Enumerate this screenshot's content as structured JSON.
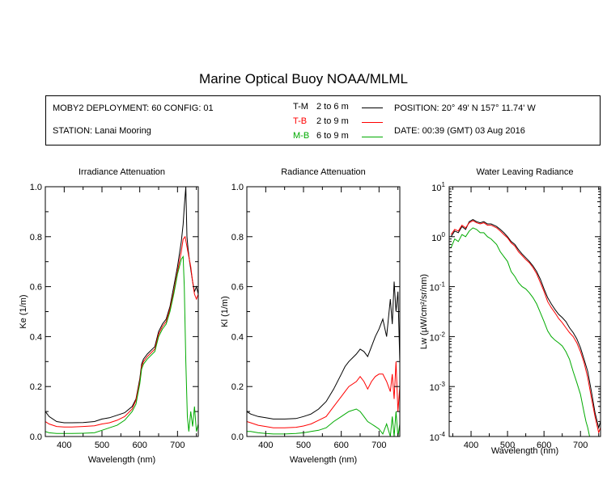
{
  "title": "Marine Optical Buoy NOAA/MLML",
  "info": {
    "deployment": "MOBY2 DEPLOYMENT: 60 CONFIG: 01",
    "station": "STATION: Lanai Mooring",
    "position": "POSITION: 20° 49' N   157° 11.74' W",
    "date": "DATE: 00:39 (GMT) 03 Aug 2016",
    "legend": [
      {
        "code": "T-M",
        "range": "2 to 6  m",
        "color": "#000000"
      },
      {
        "code": "T-B",
        "range": "2 to 9  m",
        "color": "#ff0000"
      },
      {
        "code": "M-B",
        "range": "6 to 9  m",
        "color": "#00aa00"
      }
    ]
  },
  "chart_data": [
    {
      "type": "line",
      "title": "Irradiance Attenuation",
      "xlabel": "Wavelength (nm)",
      "ylabel": "Ke  (1/m)",
      "xlim": [
        350,
        755
      ],
      "ylim": [
        0,
        1.0
      ],
      "xticks": [
        "400",
        "500",
        "600",
        "700"
      ],
      "yticks": [
        "0.0",
        "0.2",
        "0.4",
        "0.6",
        "0.8",
        "1.0"
      ],
      "series": [
        {
          "name": "T-M",
          "color": "#000000",
          "x": [
            350,
            360,
            380,
            400,
            420,
            450,
            480,
            500,
            520,
            540,
            560,
            580,
            590,
            600,
            605,
            610,
            620,
            640,
            650,
            660,
            670,
            680,
            690,
            700,
            710,
            715,
            718,
            722,
            725,
            728,
            732,
            740,
            745,
            750,
            755
          ],
          "y": [
            0.1,
            0.08,
            0.06,
            0.055,
            0.055,
            0.056,
            0.06,
            0.07,
            0.075,
            0.085,
            0.095,
            0.12,
            0.15,
            0.23,
            0.29,
            0.31,
            0.33,
            0.36,
            0.42,
            0.45,
            0.47,
            0.52,
            0.6,
            0.68,
            0.78,
            0.85,
            0.92,
            1.0,
            0.8,
            0.75,
            0.7,
            0.62,
            0.58,
            0.6,
            0.57
          ]
        },
        {
          "name": "T-B",
          "color": "#ff0000",
          "x": [
            350,
            360,
            380,
            400,
            420,
            450,
            480,
            500,
            520,
            540,
            560,
            580,
            590,
            600,
            605,
            610,
            620,
            640,
            650,
            660,
            670,
            680,
            690,
            700,
            710,
            715,
            720,
            725,
            730,
            735,
            740,
            745,
            750,
            755
          ],
          "y": [
            0.06,
            0.05,
            0.04,
            0.038,
            0.038,
            0.04,
            0.043,
            0.05,
            0.055,
            0.065,
            0.08,
            0.11,
            0.145,
            0.22,
            0.28,
            0.3,
            0.32,
            0.35,
            0.41,
            0.44,
            0.46,
            0.51,
            0.58,
            0.66,
            0.74,
            0.79,
            0.8,
            0.76,
            0.72,
            0.68,
            0.62,
            0.57,
            0.55,
            0.57
          ]
        },
        {
          "name": "M-B",
          "color": "#00aa00",
          "x": [
            350,
            360,
            380,
            400,
            420,
            450,
            480,
            500,
            520,
            540,
            560,
            580,
            590,
            600,
            605,
            610,
            620,
            640,
            650,
            660,
            670,
            680,
            690,
            700,
            710,
            715,
            718,
            722,
            726,
            730,
            735,
            740,
            745,
            750,
            755
          ],
          "y": [
            0.02,
            0.015,
            0.012,
            0.012,
            0.012,
            0.013,
            0.015,
            0.025,
            0.035,
            0.045,
            0.065,
            0.1,
            0.13,
            0.21,
            0.27,
            0.29,
            0.31,
            0.34,
            0.4,
            0.43,
            0.45,
            0.5,
            0.57,
            0.65,
            0.71,
            0.72,
            0.6,
            0.3,
            0.08,
            0.02,
            0.1,
            0.04,
            0.12,
            0.02,
            0.05
          ]
        }
      ]
    },
    {
      "type": "line",
      "title": "Radiance Attenuation",
      "xlabel": "Wavelength (nm)",
      "ylabel": "Kl  (1/m)",
      "xlim": [
        350,
        755
      ],
      "ylim": [
        0,
        1.0
      ],
      "xticks": [
        "400",
        "500",
        "600",
        "700"
      ],
      "yticks": [
        "0.0",
        "0.2",
        "0.4",
        "0.6",
        "0.8",
        "1.0"
      ],
      "series": [
        {
          "name": "T-M",
          "color": "#000000",
          "x": [
            350,
            360,
            380,
            400,
            420,
            450,
            480,
            500,
            520,
            540,
            560,
            580,
            600,
            610,
            620,
            640,
            650,
            660,
            670,
            680,
            690,
            700,
            710,
            720,
            730,
            735,
            740,
            745,
            750,
            755
          ],
          "y": [
            0.1,
            0.09,
            0.08,
            0.075,
            0.07,
            0.07,
            0.072,
            0.08,
            0.09,
            0.11,
            0.14,
            0.19,
            0.25,
            0.28,
            0.3,
            0.33,
            0.35,
            0.34,
            0.32,
            0.36,
            0.4,
            0.43,
            0.47,
            0.4,
            0.55,
            0.45,
            0.62,
            0.5,
            0.58,
            0.3
          ]
        },
        {
          "name": "T-B",
          "color": "#ff0000",
          "x": [
            350,
            360,
            380,
            400,
            420,
            450,
            480,
            500,
            520,
            540,
            560,
            580,
            600,
            610,
            620,
            640,
            650,
            660,
            670,
            680,
            690,
            700,
            710,
            720,
            730,
            735,
            740,
            745,
            750,
            755
          ],
          "y": [
            0.06,
            0.055,
            0.045,
            0.04,
            0.035,
            0.035,
            0.037,
            0.042,
            0.05,
            0.065,
            0.08,
            0.12,
            0.16,
            0.18,
            0.2,
            0.22,
            0.24,
            0.22,
            0.19,
            0.22,
            0.24,
            0.25,
            0.25,
            0.22,
            0.18,
            0.25,
            0.15,
            0.3,
            0.1,
            0.2
          ]
        },
        {
          "name": "M-B",
          "color": "#00aa00",
          "x": [
            350,
            360,
            380,
            400,
            420,
            450,
            480,
            500,
            520,
            540,
            560,
            580,
            600,
            610,
            620,
            640,
            650,
            660,
            670,
            680,
            690,
            700,
            710,
            720,
            730,
            735,
            740,
            745,
            750,
            755
          ],
          "y": [
            0.02,
            0.02,
            0.015,
            0.012,
            0.01,
            0.01,
            0.012,
            0.015,
            0.02,
            0.025,
            0.035,
            0.06,
            0.08,
            0.09,
            0.1,
            0.11,
            0.1,
            0.08,
            0.06,
            0.05,
            0.04,
            0.03,
            0.01,
            0.05,
            0.0,
            0.08,
            0.0,
            0.1,
            0.0,
            0.05
          ]
        }
      ]
    },
    {
      "type": "line",
      "title": "Water Leaving Radiance",
      "xlabel": "Wavelength (nm)",
      "ylabel": "Lw  (µW/cm²/sr/nm)",
      "yscale": "log",
      "xlim": [
        340,
        755
      ],
      "ylim": [
        0.0001,
        10
      ],
      "xticks": [
        "400",
        "500",
        "600",
        "700"
      ],
      "yticks": [
        {
          "value": 10,
          "base": "10",
          "exp": "1"
        },
        {
          "value": 1,
          "base": "10",
          "exp": "0"
        },
        {
          "value": 0.1,
          "base": "10",
          "exp": "-1"
        },
        {
          "value": 0.01,
          "base": "10",
          "exp": "-2"
        },
        {
          "value": 0.001,
          "base": "10",
          "exp": "-3"
        },
        {
          "value": 0.0001,
          "base": "10",
          "exp": "-4"
        }
      ],
      "series": [
        {
          "name": "T-M",
          "color": "#000000",
          "x": [
            345,
            355,
            365,
            375,
            385,
            395,
            405,
            415,
            425,
            435,
            445,
            455,
            470,
            480,
            490,
            500,
            510,
            520,
            530,
            540,
            550,
            560,
            570,
            580,
            590,
            600,
            610,
            620,
            630,
            640,
            650,
            660,
            670,
            680,
            690,
            700,
            710,
            720,
            730,
            740,
            750,
            755
          ],
          "y": [
            1.0,
            1.3,
            1.2,
            1.6,
            1.4,
            2.0,
            2.2,
            2.0,
            1.9,
            2.0,
            1.8,
            1.8,
            1.6,
            1.4,
            1.2,
            1.0,
            0.8,
            0.7,
            0.55,
            0.45,
            0.38,
            0.32,
            0.26,
            0.2,
            0.14,
            0.09,
            0.06,
            0.045,
            0.035,
            0.028,
            0.024,
            0.02,
            0.015,
            0.012,
            0.009,
            0.006,
            0.0035,
            0.002,
            0.0008,
            0.0003,
            0.00015,
            0.0002
          ]
        },
        {
          "name": "T-B",
          "color": "#ff0000",
          "x": [
            345,
            355,
            365,
            375,
            385,
            395,
            405,
            415,
            425,
            435,
            445,
            455,
            470,
            480,
            490,
            500,
            510,
            520,
            530,
            540,
            550,
            560,
            570,
            580,
            590,
            600,
            610,
            620,
            630,
            640,
            650,
            660,
            670,
            680,
            690,
            700,
            710,
            720,
            730,
            740,
            750,
            755
          ],
          "y": [
            1.1,
            1.4,
            1.3,
            1.7,
            1.5,
            1.9,
            2.1,
            1.9,
            1.8,
            1.9,
            1.7,
            1.7,
            1.5,
            1.3,
            1.1,
            0.95,
            0.75,
            0.65,
            0.5,
            0.42,
            0.35,
            0.3,
            0.24,
            0.18,
            0.12,
            0.08,
            0.05,
            0.038,
            0.03,
            0.023,
            0.019,
            0.015,
            0.012,
            0.01,
            0.0075,
            0.005,
            0.003,
            0.0015,
            0.0006,
            0.00025,
            0.00012,
            0.00015
          ]
        },
        {
          "name": "M-B",
          "color": "#00aa00",
          "x": [
            345,
            355,
            365,
            375,
            385,
            395,
            405,
            415,
            425,
            435,
            445,
            455,
            470,
            480,
            490,
            500,
            510,
            520,
            530,
            540,
            550,
            560,
            570,
            580,
            590,
            600,
            610,
            620,
            630,
            640,
            650,
            660,
            670,
            680,
            690,
            700,
            710,
            715,
            720,
            725,
            730
          ],
          "y": [
            0.6,
            0.9,
            0.8,
            1.1,
            1.0,
            1.3,
            1.5,
            1.4,
            1.2,
            1.2,
            1.0,
            0.9,
            0.7,
            0.5,
            0.4,
            0.32,
            0.2,
            0.16,
            0.12,
            0.1,
            0.09,
            0.075,
            0.06,
            0.045,
            0.03,
            0.02,
            0.013,
            0.01,
            0.0085,
            0.0075,
            0.0065,
            0.005,
            0.0035,
            0.002,
            0.0012,
            0.0007,
            0.0003,
            0.0002,
            0.00015,
            0.0001,
            0.0001
          ]
        }
      ]
    }
  ]
}
